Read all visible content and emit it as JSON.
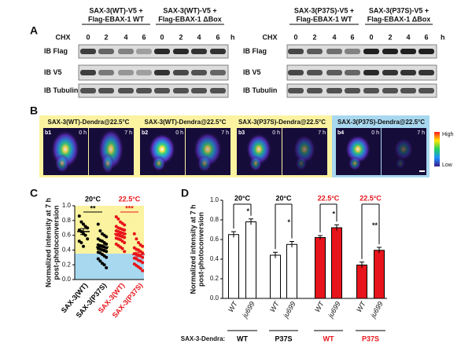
{
  "panel_a": {
    "label": "A",
    "blots": [
      {
        "chx": "CHX",
        "unit": "h",
        "rows": [
          "IB Flag",
          "IB V5",
          "IB Tubulin"
        ],
        "groups": [
          {
            "title": [
              "SAX-3(WT)-V5 +",
              "Flag-EBAX-1 WT"
            ],
            "lanes": [
              "0",
              "2",
              "4",
              "6"
            ]
          },
          {
            "title": [
              "SAX-3(WT)-V5 +",
              "Flag-EBAX-1 ΔBox"
            ],
            "lanes": [
              "0",
              "2",
              "4",
              "6"
            ]
          }
        ]
      },
      {
        "chx": "CHX",
        "unit": "h",
        "rows": [
          "IB Flag",
          "IB V5",
          "IB Tubulin"
        ],
        "groups": [
          {
            "title": [
              "SAX-3(P37S)-V5 +",
              "Flag-EBAX-1 WT"
            ],
            "lanes": [
              "0",
              "2",
              "4",
              "6"
            ]
          },
          {
            "title": [
              "SAX-3(P37S)-V5 +",
              "Flag-EBAX-1 ΔBox"
            ],
            "lanes": [
              "0",
              "2",
              "4",
              "6"
            ]
          }
        ]
      }
    ]
  },
  "panel_b": {
    "label": "B",
    "panels": [
      {
        "title": "SAX-3(WT)-Dendra@22.5°C",
        "id": "b1",
        "times": [
          "0 h",
          "7 h"
        ]
      },
      {
        "title": "SAX-3(WT)-Dendra@22.5°C",
        "id": "b2",
        "times": [
          "0 h",
          "7 h"
        ]
      },
      {
        "title": "SAX-3(P37S)-Dendra@22.5°C",
        "id": "b3",
        "times": [
          "0 h",
          "7 h"
        ]
      },
      {
        "title": "SAX-3(P37S)-Dendra@22.5°C",
        "id": "b4",
        "times": [
          "0 h",
          "7 h"
        ]
      }
    ],
    "scale": [
      "High",
      "Low"
    ]
  },
  "chart_data": [
    {
      "type": "scatter",
      "panel_label": "C",
      "y_label": [
        "Normalized intensity at 7 h",
        "post-photoconversion"
      ],
      "ylim": [
        0,
        1
      ],
      "yticks": [
        {
          "value": 0,
          "label": "0.0"
        },
        {
          "value": 0.2,
          "label": "0.2"
        },
        {
          "value": 0.4,
          "label": "0.4"
        },
        {
          "value": 0.6,
          "label": "0.6"
        },
        {
          "value": 0.8,
          "label": "0.8"
        },
        {
          "value": 1,
          "label": "1.0"
        }
      ],
      "conditions": [
        {
          "label": "20°C",
          "color": "#000000",
          "significance": "**"
        },
        {
          "label": "22.5°C",
          "color": "#e8141b",
          "significance": "***"
        }
      ],
      "series": [
        {
          "name": "SAX-3(WT)",
          "color": "#000000",
          "values": [
            0.86,
            0.78,
            0.75,
            0.72,
            0.7,
            0.67,
            0.65,
            0.62,
            0.6,
            0.55,
            0.52,
            0.5,
            0.45
          ],
          "mean": 0.65,
          "sem": 0.04
        },
        {
          "name": "SAX-3(P37S)",
          "color": "#000000",
          "values": [
            0.75,
            0.66,
            0.62,
            0.6,
            0.58,
            0.55,
            0.53,
            0.52,
            0.5,
            0.48,
            0.47,
            0.46,
            0.45,
            0.44,
            0.43,
            0.42,
            0.41,
            0.4,
            0.39,
            0.38,
            0.37,
            0.36,
            0.34,
            0.32,
            0.3,
            0.28,
            0.25,
            0.22,
            0.2,
            0.16
          ],
          "mean": 0.44,
          "sem": 0.03
        },
        {
          "name": "SAX-3(WT)",
          "color": "#e8141b",
          "values": [
            0.85,
            0.82,
            0.78,
            0.76,
            0.74,
            0.72,
            0.7,
            0.69,
            0.68,
            0.67,
            0.66,
            0.65,
            0.64,
            0.63,
            0.62,
            0.61,
            0.6,
            0.59,
            0.58,
            0.57,
            0.56,
            0.55,
            0.54,
            0.52,
            0.5,
            0.48,
            0.46,
            0.44,
            0.42,
            0.38
          ],
          "mean": 0.62,
          "sem": 0.02
        },
        {
          "name": "SAX-3(P37S)",
          "color": "#e8141b",
          "values": [
            0.62,
            0.55,
            0.5,
            0.47,
            0.45,
            0.43,
            0.41,
            0.4,
            0.38,
            0.36,
            0.35,
            0.34,
            0.33,
            0.32,
            0.3,
            0.29,
            0.28,
            0.26,
            0.25,
            0.23,
            0.21,
            0.19,
            0.17,
            0.15,
            0.12
          ],
          "mean": 0.34,
          "sem": 0.03
        }
      ]
    },
    {
      "type": "bar",
      "panel_label": "D",
      "y_label": [
        "Normalized intensity at 7 h",
        "post-photoconversion"
      ],
      "ylim": [
        0,
        1
      ],
      "yticks": [
        {
          "value": 0,
          "label": "0.0"
        },
        {
          "value": 0.2,
          "label": "0.2"
        },
        {
          "value": 0.4,
          "label": "0.4"
        },
        {
          "value": 0.6,
          "label": "0.6"
        },
        {
          "value": 0.8,
          "label": "0.8"
        },
        {
          "value": 1,
          "label": "1.0"
        }
      ],
      "group_axis_label": "SAX-3-Dendra:",
      "groups": [
        {
          "header": "20°C",
          "label": "WT",
          "text_color": "#000000",
          "color": "#ffffff",
          "significance": "*",
          "categories": [
            "WT",
            "ju699"
          ],
          "values": [
            0.65,
            0.78
          ],
          "errors": [
            0.03,
            0.03
          ]
        },
        {
          "header": "20°C",
          "label": "P37S",
          "text_color": "#000000",
          "color": "#ffffff",
          "significance": "*",
          "categories": [
            "WT",
            "ju699"
          ],
          "values": [
            0.44,
            0.55
          ],
          "errors": [
            0.03,
            0.03
          ]
        },
        {
          "header": "22.5°C",
          "label": "WT",
          "text_color": "#e8141b",
          "color": "#e8141b",
          "significance": "*",
          "categories": [
            "WT",
            "ju699"
          ],
          "values": [
            0.62,
            0.72
          ],
          "errors": [
            0.02,
            0.03
          ]
        },
        {
          "header": "22.5°C",
          "label": "P37S",
          "text_color": "#e8141b",
          "color": "#e8141b",
          "significance": "**",
          "categories": [
            "WT",
            "ju699"
          ],
          "values": [
            0.34,
            0.49
          ],
          "errors": [
            0.03,
            0.03
          ]
        }
      ]
    }
  ]
}
